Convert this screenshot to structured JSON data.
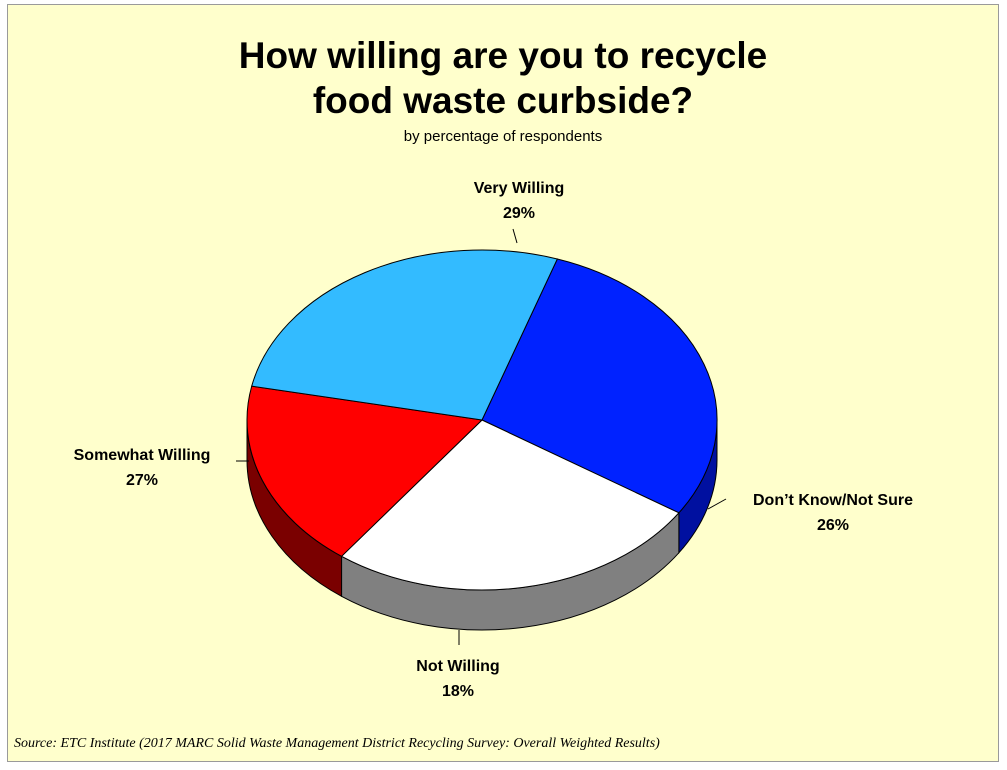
{
  "chart_data": {
    "type": "pie",
    "title_line1": "How willing are you to recycle",
    "title_line2": "food waste curbside?",
    "subtitle": "by percentage of respondents",
    "slices": [
      {
        "label": "Very Willing",
        "value": 29,
        "value_label": "29%",
        "color": "#0022ff"
      },
      {
        "label": "Don’t Know/Not Sure",
        "value": 26,
        "value_label": "26%",
        "color": "#ffffff"
      },
      {
        "label": "Not Willing",
        "value": 18,
        "value_label": "18%",
        "color": "#ff0000"
      },
      {
        "label": "Somewhat Willing",
        "value": 27,
        "value_label": "27%",
        "color": "#33bbff"
      }
    ],
    "source": "Source:  ETC Institute (2017 MARC Solid Waste Management District Recycling Survey: Overall Weighted Results)"
  },
  "colors": {
    "background": "#ffffcc",
    "side_very_willing": "#0010a0",
    "side_dont_know": "#808080",
    "side_not_willing": "#7a0000",
    "side_somewhat_willing": "#1a5f80"
  }
}
